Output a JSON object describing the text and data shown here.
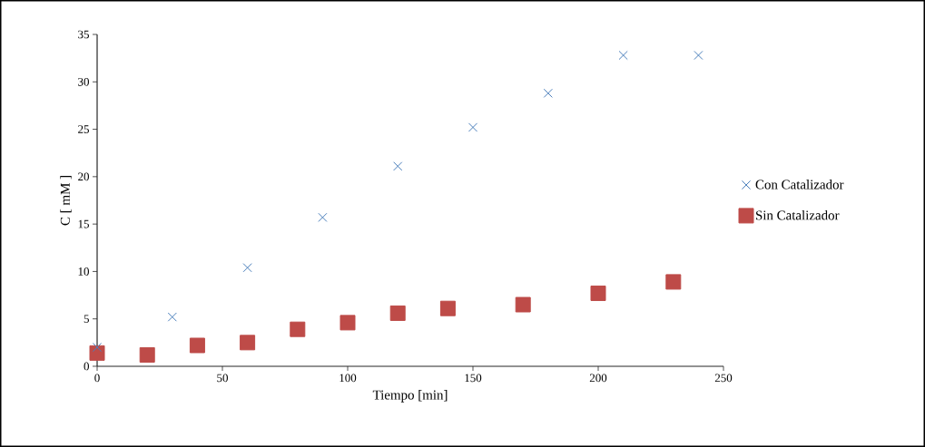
{
  "chart_data": {
    "type": "scatter",
    "xlabel": "Tiempo [min]",
    "ylabel": "C  [ mM ]",
    "xlim": [
      0,
      250
    ],
    "ylim": [
      0,
      35
    ],
    "xticks": [
      0,
      50,
      100,
      150,
      200,
      250
    ],
    "yticks": [
      0,
      5,
      10,
      15,
      20,
      25,
      30,
      35
    ],
    "grid": false,
    "legend": "right",
    "series": [
      {
        "name": "Con Catalizador",
        "color": "#4a7ebb",
        "marker": "cross",
        "x": [
          0,
          30,
          60,
          90,
          120,
          150,
          180,
          210,
          240
        ],
        "values": [
          2.0,
          5.2,
          10.4,
          15.7,
          21.1,
          25.2,
          28.8,
          32.8,
          32.8
        ]
      },
      {
        "name": "Sin Catalizador",
        "color": "#be4b48",
        "marker": "square",
        "x": [
          0,
          20,
          40,
          60,
          80,
          100,
          120,
          140,
          170,
          200,
          230
        ],
        "values": [
          1.4,
          1.2,
          2.2,
          2.5,
          3.9,
          4.6,
          5.6,
          6.1,
          6.5,
          7.7,
          8.9
        ]
      }
    ]
  }
}
